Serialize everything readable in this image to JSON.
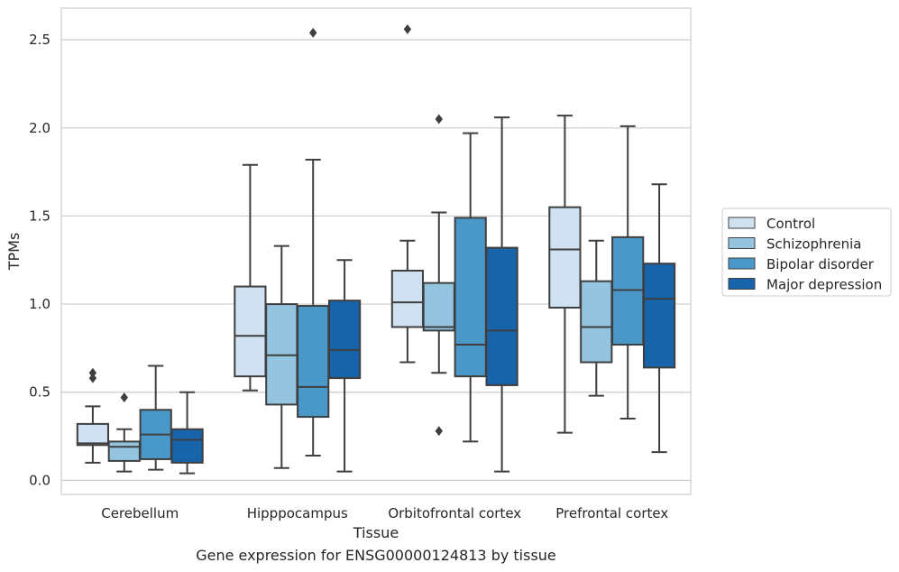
{
  "chart_data": {
    "type": "box",
    "title": "",
    "caption": "Gene expression for ENSG00000124813 by tissue",
    "xlabel": "Tissue",
    "ylabel": "TPMs",
    "ylim": [
      -0.08,
      2.68
    ],
    "yticks": [
      0.0,
      0.5,
      1.0,
      1.5,
      2.0,
      2.5
    ],
    "ytick_labels": [
      "0.0",
      "0.5",
      "1.0",
      "1.5",
      "2.0",
      "2.5"
    ],
    "grid": "horizontal",
    "legend_position": "right",
    "categories": [
      "Cerebellum",
      "Hipppocampus",
      "Orbitofrontal cortex",
      "Prefrontal cortex"
    ],
    "colors": {
      "Control": "#d0e1f2",
      "Schizophrenia": "#94c4df",
      "Bipolar disorder": "#4a98c9",
      "Major depression": "#1764ab",
      "line": "#3f3f3f",
      "grid": "#cccccc"
    },
    "series": [
      {
        "name": "Control",
        "boxes": [
          {
            "whisker_low": 0.1,
            "q1": 0.2,
            "median": 0.21,
            "q3": 0.32,
            "whisker_high": 0.42,
            "outliers": [
              0.58,
              0.61
            ]
          },
          {
            "whisker_low": 0.51,
            "q1": 0.59,
            "median": 0.82,
            "q3": 1.1,
            "whisker_high": 1.79,
            "outliers": []
          },
          {
            "whisker_low": 0.67,
            "q1": 0.87,
            "median": 1.01,
            "q3": 1.19,
            "whisker_high": 1.36,
            "outliers": [
              2.56
            ]
          },
          {
            "whisker_low": 0.27,
            "q1": 0.98,
            "median": 1.31,
            "q3": 1.55,
            "whisker_high": 2.07,
            "outliers": []
          }
        ]
      },
      {
        "name": "Schizophrenia",
        "boxes": [
          {
            "whisker_low": 0.05,
            "q1": 0.11,
            "median": 0.19,
            "q3": 0.22,
            "whisker_high": 0.29,
            "outliers": [
              0.47
            ]
          },
          {
            "whisker_low": 0.07,
            "q1": 0.43,
            "median": 0.71,
            "q3": 1.0,
            "whisker_high": 1.33,
            "outliers": []
          },
          {
            "whisker_low": 0.61,
            "q1": 0.85,
            "median": 0.87,
            "q3": 1.12,
            "whisker_high": 1.52,
            "outliers": [
              0.28,
              2.05
            ]
          },
          {
            "whisker_low": 0.48,
            "q1": 0.67,
            "median": 0.87,
            "q3": 1.13,
            "whisker_high": 1.36,
            "outliers": []
          }
        ]
      },
      {
        "name": "Bipolar disorder",
        "boxes": [
          {
            "whisker_low": 0.06,
            "q1": 0.12,
            "median": 0.26,
            "q3": 0.4,
            "whisker_high": 0.65,
            "outliers": []
          },
          {
            "whisker_low": 0.14,
            "q1": 0.36,
            "median": 0.53,
            "q3": 0.99,
            "whisker_high": 1.82,
            "outliers": [
              2.54
            ]
          },
          {
            "whisker_low": 0.22,
            "q1": 0.59,
            "median": 0.77,
            "q3": 1.49,
            "whisker_high": 1.97,
            "outliers": []
          },
          {
            "whisker_low": 0.35,
            "q1": 0.77,
            "median": 1.08,
            "q3": 1.38,
            "whisker_high": 2.01,
            "outliers": []
          }
        ]
      },
      {
        "name": "Major depression",
        "boxes": [
          {
            "whisker_low": 0.04,
            "q1": 0.1,
            "median": 0.23,
            "q3": 0.29,
            "whisker_high": 0.5,
            "outliers": []
          },
          {
            "whisker_low": 0.05,
            "q1": 0.58,
            "median": 0.74,
            "q3": 1.02,
            "whisker_high": 1.25,
            "outliers": []
          },
          {
            "whisker_low": 0.05,
            "q1": 0.54,
            "median": 0.85,
            "q3": 1.32,
            "whisker_high": 2.06,
            "outliers": []
          },
          {
            "whisker_low": 0.16,
            "q1": 0.64,
            "median": 1.03,
            "q3": 1.23,
            "whisker_high": 1.68,
            "outliers": []
          }
        ]
      }
    ]
  }
}
